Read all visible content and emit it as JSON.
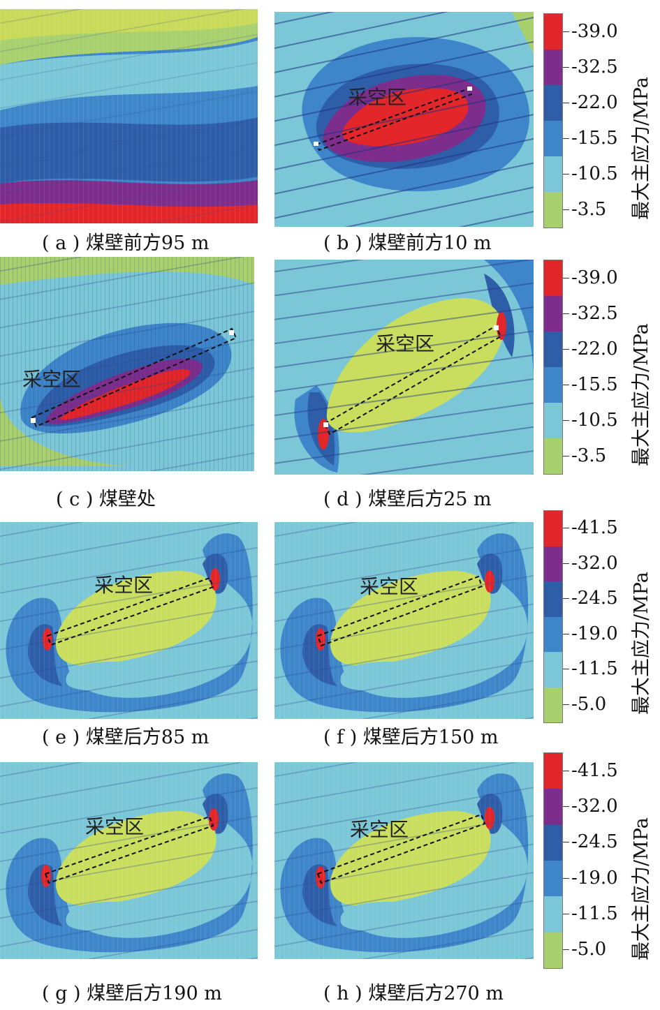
{
  "colorbars": [
    {
      "title": "最大主应力/MPa",
      "ticks": [
        "-39.0",
        "-32.5",
        "-22.0",
        "-15.5",
        "-10.5",
        "-3.5"
      ],
      "colors": [
        "#e3262a",
        "#7d2d8c",
        "#2f5ea8",
        "#3e86c9",
        "#7cc7d7",
        "#a9d06f"
      ]
    },
    {
      "title": "最大主应力/MPa",
      "ticks": [
        "-39.0",
        "-32.5",
        "-22.0",
        "-15.5",
        "-10.5",
        "-3.5"
      ],
      "colors": [
        "#e3262a",
        "#7d2d8c",
        "#2f5ea8",
        "#3e86c9",
        "#7cc7d7",
        "#a9d06f"
      ]
    },
    {
      "title": "最大主应力/MPa",
      "ticks": [
        "-41.5",
        "-32.0",
        "-24.5",
        "-19.0",
        "-11.5",
        "-5.0"
      ],
      "colors": [
        "#e3262a",
        "#7d2d8c",
        "#2f5ea8",
        "#3e86c9",
        "#7cc7d7",
        "#a9d06f"
      ]
    },
    {
      "title": "最大主应力/MPa",
      "ticks": [
        "-41.5",
        "-32.0",
        "-24.5",
        "-19.0",
        "-11.5",
        "-5.0"
      ],
      "colors": [
        "#e3262a",
        "#7d2d8c",
        "#2f5ea8",
        "#3e86c9",
        "#7cc7d7",
        "#a9d06f"
      ]
    }
  ],
  "panels": [
    {
      "caption": "( a ) 煤壁前方95 m",
      "label": ""
    },
    {
      "caption": "( b ) 煤壁前方10 m",
      "label": "采空区"
    },
    {
      "caption": "( c ) 煤壁处",
      "label": "采空区"
    },
    {
      "caption": "( d ) 煤壁后方25 m",
      "label": "采空区"
    },
    {
      "caption": "( e ) 煤壁后方85 m",
      "label": "采空区"
    },
    {
      "caption": "( f ) 煤壁后方150 m",
      "label": "采空区"
    },
    {
      "caption": "( g ) 煤壁后方190 m",
      "label": "采空区"
    },
    {
      "caption": "( h ) 煤壁后方270 m",
      "label": "采空区"
    }
  ]
}
